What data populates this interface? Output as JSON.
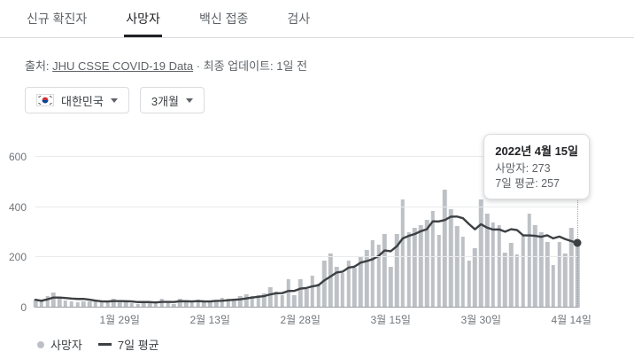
{
  "tabs": [
    {
      "label": "신규 확진자",
      "active": false
    },
    {
      "label": "사망자",
      "active": true
    },
    {
      "label": "백신 접종",
      "active": false
    },
    {
      "label": "검사",
      "active": false
    }
  ],
  "source": {
    "prefix": "출처: ",
    "link": "JHU CSSE COVID-19 Data",
    "suffix": " · 최종 업데이트: 1일 전"
  },
  "filters": {
    "region": "대한민국",
    "period": "3개월"
  },
  "tooltip": {
    "title": "2022년 4월 15일",
    "line1": "사망자: 273",
    "line2": "7일 평균: 257"
  },
  "legend": {
    "bars": "사망자",
    "line": "7일 평균"
  },
  "colors": {
    "bar": "#bdc1c6",
    "line": "#3c4043",
    "grid": "#e8eaed",
    "axis_text": "#70757a",
    "active_tab": "#202124"
  },
  "chart_data": {
    "type": "bar",
    "title": "대한민국 코로나19 사망자 (3개월)",
    "x_start": "2022-01-15",
    "x_end": "2022-04-15",
    "ylim": [
      0,
      600
    ],
    "y_ticks": [
      0,
      200,
      400,
      600
    ],
    "x_ticks": [
      {
        "label": "1월 29일",
        "index": 14
      },
      {
        "label": "2월 13일",
        "index": 29
      },
      {
        "label": "2월 28일",
        "index": 44
      },
      {
        "label": "3월 15일",
        "index": 59
      },
      {
        "label": "3월 30일",
        "index": 74
      },
      {
        "label": "4월 14일",
        "index": 89
      }
    ],
    "series": [
      {
        "name": "사망자",
        "type": "bar",
        "values": [
          31,
          23,
          45,
          61,
          40,
          28,
          23,
          21,
          25,
          23,
          32,
          22,
          24,
          34,
          20,
          22,
          17,
          15,
          22,
          24,
          24,
          36,
          22,
          13,
          36,
          21,
          20,
          33,
          28,
          21,
          27,
          39,
          36,
          33,
          45,
          53,
          45,
          51,
          58,
          82,
          65,
          49,
          112,
          49,
          114,
          75,
          128,
          96,
          186,
          216,
          161,
          139,
          186,
          158,
          206,
          229,
          269,
          251,
          293,
          164,
          293,
          429,
          301,
          319,
          329,
          349,
          384,
          291,
          469,
          393,
          323,
          282,
          187,
          237,
          432,
          375,
          339,
          327,
          218,
          257,
          211,
          286,
          373,
          328,
          300,
          261,
          171,
          260,
          216,
          318,
          273
        ]
      },
      {
        "name": "7일 평균",
        "type": "line",
        "derived": "7-day rolling average of 사망자"
      }
    ],
    "hover": {
      "index": 90,
      "date": "2022년 4월 15일",
      "deaths": 273,
      "avg": 257
    },
    "legend_position": "bottom",
    "grid": true
  }
}
